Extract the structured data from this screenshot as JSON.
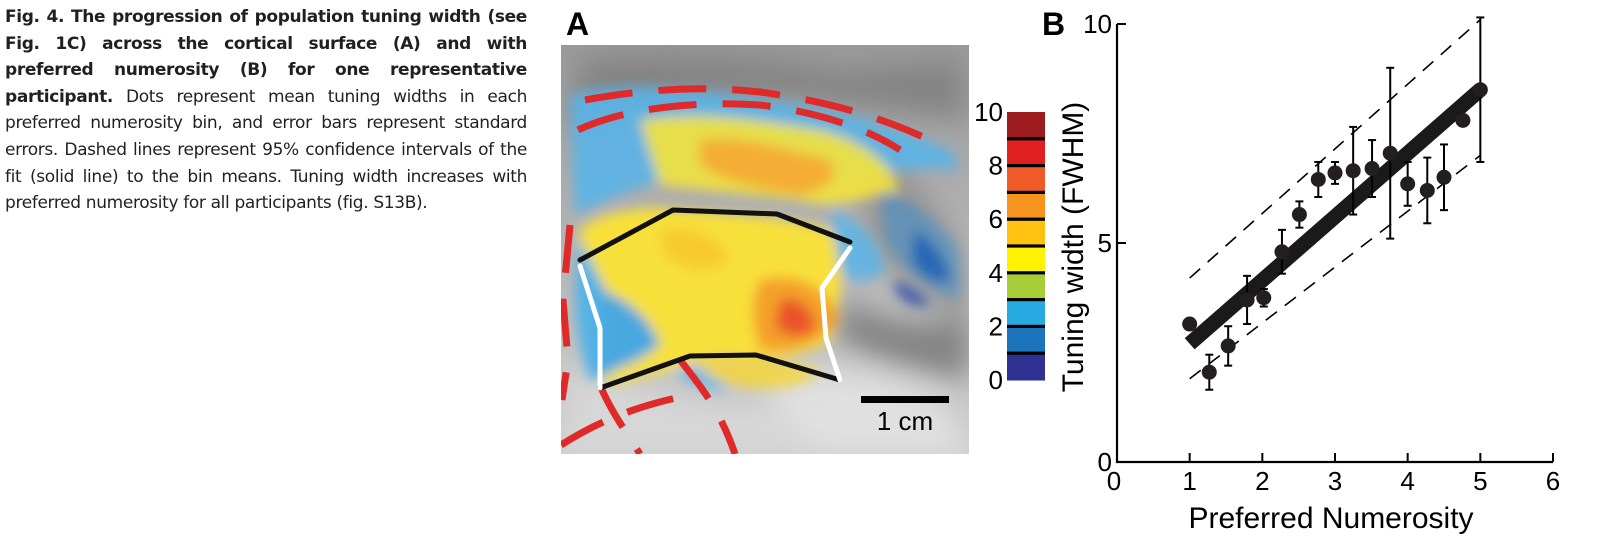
{
  "caption": {
    "bold": "Fig. 4. The progression of population tuning width (see Fig. 1C) across the cortical surface (A) and with preferred numerosity (B) for one representative participant",
    "bold_end": ".",
    "rest": " Dots represent mean tuning widths in each preferred numerosity bin, and error bars represent standard errors. Dashed lines represent 95% confidence intervals of the fit (solid line) to the bin means. Tuning width increases with preferred numerosity for all participants (fig. S13B)."
  },
  "panel_a": {
    "label": "A",
    "scale_bar_label": "1 cm",
    "colorbar": {
      "ticks": [
        "10",
        "8",
        "6",
        "4",
        "2",
        "0"
      ],
      "colors": [
        "#9b1b1e",
        "#e02020",
        "#f05a28",
        "#f7941d",
        "#ffc20e",
        "#fff200",
        "#a6ce39",
        "#27aae1",
        "#1c75bc",
        "#2e3192"
      ]
    }
  },
  "chart_data": {
    "type": "scatter",
    "panel_label": "B",
    "title": "",
    "xlabel": "Preferred Numerosity",
    "ylabel": "Tuning width (FWHM)",
    "xlim": [
      0,
      6
    ],
    "ylim": [
      0,
      10
    ],
    "xticks": [
      "0",
      "1",
      "2",
      "3",
      "4",
      "5",
      "6"
    ],
    "yticks": [
      "0",
      "5",
      "10"
    ],
    "points": [
      {
        "x": 1.0,
        "y": 3.15,
        "err": 0.0
      },
      {
        "x": 1.27,
        "y": 2.05,
        "err": 0.4
      },
      {
        "x": 1.53,
        "y": 2.65,
        "err": 0.45
      },
      {
        "x": 1.79,
        "y": 3.7,
        "err": 0.55
      },
      {
        "x": 2.02,
        "y": 3.75,
        "err": 0.2
      },
      {
        "x": 2.27,
        "y": 4.8,
        "err": 0.5
      },
      {
        "x": 2.51,
        "y": 5.65,
        "err": 0.3
      },
      {
        "x": 2.77,
        "y": 6.45,
        "err": 0.4
      },
      {
        "x": 3.0,
        "y": 6.6,
        "err": 0.25
      },
      {
        "x": 3.25,
        "y": 6.65,
        "err": 1.0
      },
      {
        "x": 3.51,
        "y": 6.7,
        "err": 0.65
      },
      {
        "x": 3.76,
        "y": 7.05,
        "err": 1.95
      },
      {
        "x": 4.0,
        "y": 6.35,
        "err": 0.5
      },
      {
        "x": 4.27,
        "y": 6.2,
        "err": 0.75
      },
      {
        "x": 4.5,
        "y": 6.5,
        "err": 0.75
      },
      {
        "x": 4.76,
        "y": 7.8,
        "err": 0.0
      },
      {
        "x": 5.0,
        "y": 8.5,
        "err": 1.65
      }
    ],
    "fit": {
      "x": [
        1.0,
        5.0
      ],
      "y": [
        2.7,
        8.5
      ]
    },
    "ci_upper": {
      "x": [
        1.0,
        5.0
      ],
      "y": [
        4.2,
        10.1
      ]
    },
    "ci_lower": {
      "x": [
        1.0,
        5.0
      ],
      "y": [
        1.9,
        7.0
      ]
    }
  }
}
